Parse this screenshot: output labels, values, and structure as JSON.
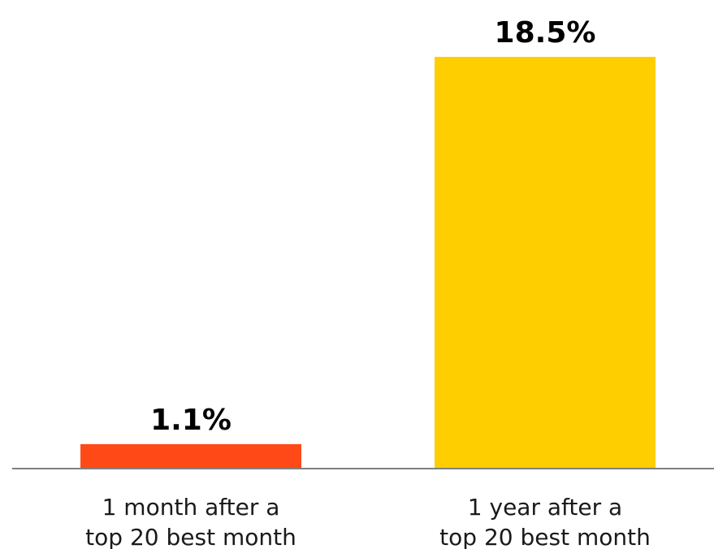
{
  "chart_data": {
    "type": "bar",
    "categories": [
      [
        "1 month after a",
        "top 20 best month"
      ],
      [
        "1 year after a",
        "top 20 best month"
      ]
    ],
    "values": [
      1.1,
      18.5
    ],
    "value_labels": [
      "1.1%",
      "18.5%"
    ],
    "colors": [
      "#FF4A17",
      "#FFCE00"
    ],
    "ylim": [
      0,
      18.5
    ],
    "grid": false,
    "title": "",
    "xlabel": "",
    "ylabel": ""
  }
}
